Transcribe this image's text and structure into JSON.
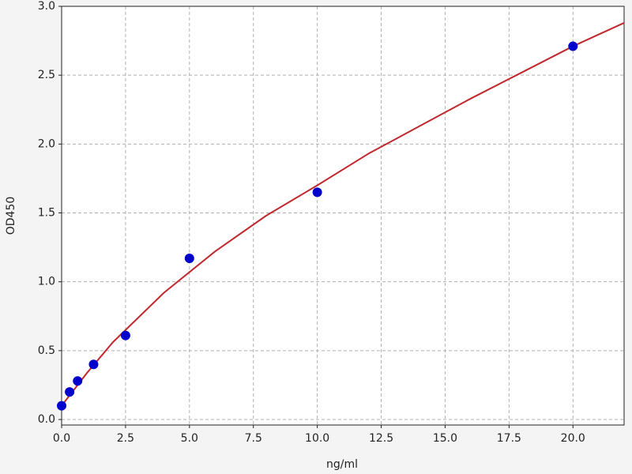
{
  "chart_data": {
    "type": "scatter",
    "x_label": "ng/ml",
    "y_label": "OD450",
    "xlim": [
      0,
      22
    ],
    "ylim": [
      -0.04,
      3.0
    ],
    "xticks": [
      {
        "value": 0,
        "label": "0.0"
      },
      2.5,
      {
        "value": 5,
        "label": "5.0"
      },
      7.5,
      {
        "value": 10,
        "label": "10.0"
      },
      12.5,
      {
        "value": 15,
        "label": "15.0"
      },
      17.5,
      {
        "value": 20,
        "label": "20.0"
      }
    ],
    "yticks": [
      {
        "value": 0,
        "label": "0.0"
      },
      0.5,
      {
        "value": 1,
        "label": "1.0"
      },
      1.5,
      {
        "value": 2,
        "label": "2.0"
      },
      2.5,
      {
        "value": 3,
        "label": "3.0"
      }
    ],
    "grid": true,
    "series": [
      {
        "type": "scatter",
        "color": "#0000cc",
        "x": [
          0,
          0.3125,
          0.625,
          1.25,
          2.5,
          5,
          10,
          20
        ],
        "values": [
          0.1,
          0.2,
          0.28,
          0.4,
          0.61,
          1.17,
          1.65,
          2.71
        ]
      },
      {
        "type": "line",
        "color": "#c0282d",
        "x": [
          0,
          1,
          2,
          4,
          6,
          8,
          10,
          12,
          14,
          16,
          18,
          20,
          22
        ],
        "values": [
          0.1,
          0.34,
          0.56,
          0.92,
          1.22,
          1.48,
          1.7,
          1.93,
          2.13,
          2.33,
          2.52,
          2.71,
          2.88
        ]
      }
    ]
  }
}
